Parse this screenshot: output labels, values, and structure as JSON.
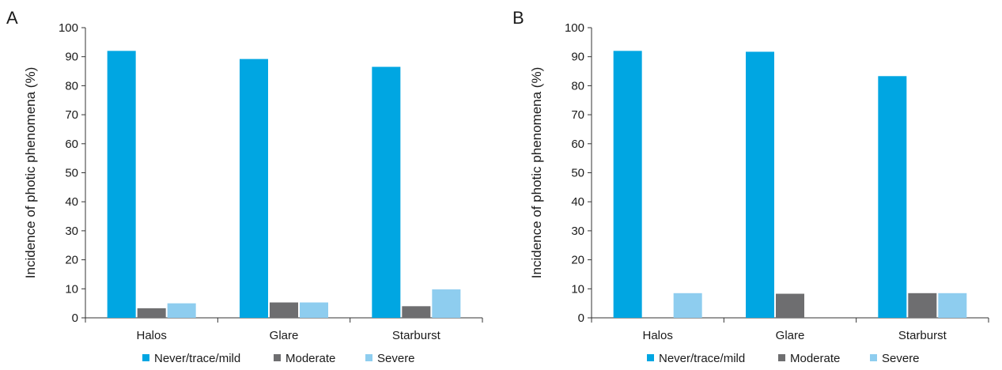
{
  "chart_data": [
    {
      "type": "bar",
      "panel_label": "A",
      "categories": [
        "Halos",
        "Glare",
        "Starburst"
      ],
      "series": [
        {
          "name": "Never/trace/mild",
          "values": [
            92.0,
            89.2,
            86.5
          ],
          "color": "#00a6e2"
        },
        {
          "name": "Moderate",
          "values": [
            3.3,
            5.3,
            4.0
          ],
          "color": "#6e6e70"
        },
        {
          "name": "Severe",
          "values": [
            5.0,
            5.3,
            9.8
          ],
          "color": "#8ecdef"
        }
      ],
      "ylabel": "Incidence of photic phenomena (%)",
      "xlabel": "",
      "ylim": [
        0,
        100
      ],
      "yticks": [
        0,
        10,
        20,
        30,
        40,
        50,
        60,
        70,
        80,
        90,
        100
      ],
      "grid": false,
      "legend_position": "bottom"
    },
    {
      "type": "bar",
      "panel_label": "B",
      "categories": [
        "Halos",
        "Glare",
        "Starburst"
      ],
      "series": [
        {
          "name": "Never/trace/mild",
          "values": [
            92.0,
            91.7,
            83.3
          ],
          "color": "#00a6e2"
        },
        {
          "name": "Moderate",
          "values": [
            0,
            8.3,
            8.5
          ],
          "color": "#6e6e70"
        },
        {
          "name": "Severe",
          "values": [
            8.5,
            0,
            8.5
          ],
          "color": "#8ecdef"
        }
      ],
      "ylabel": "Incidence of photic phenomena (%)",
      "xlabel": "",
      "ylim": [
        0,
        100
      ],
      "yticks": [
        0,
        10,
        20,
        30,
        40,
        50,
        60,
        70,
        80,
        90,
        100
      ],
      "grid": false,
      "legend_position": "bottom"
    }
  ]
}
